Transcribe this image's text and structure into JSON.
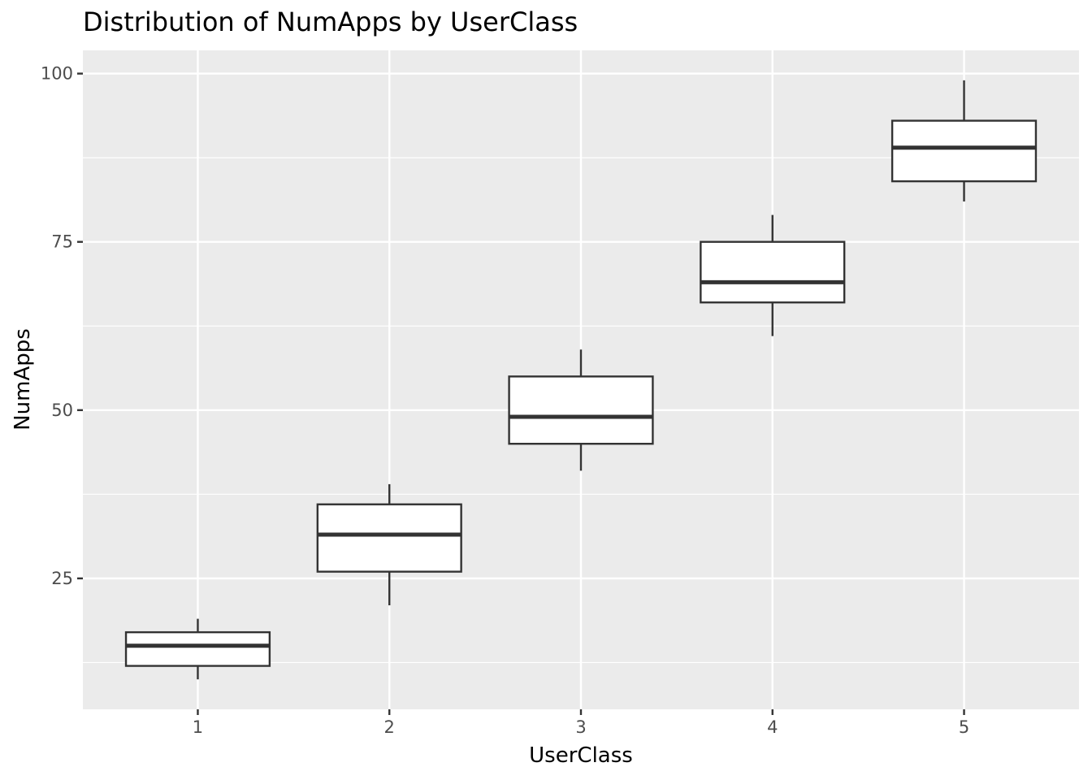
{
  "chart_data": {
    "type": "boxplot",
    "title": "Distribution of  NumApps  by  UserClass",
    "xlabel": "UserClass",
    "ylabel": "NumApps",
    "categories": [
      "1",
      "2",
      "3",
      "4",
      "5"
    ],
    "boxes": [
      {
        "category": "1",
        "whisker_low": 10,
        "q1": 12,
        "median": 15,
        "q3": 17,
        "whisker_high": 19
      },
      {
        "category": "2",
        "whisker_low": 21,
        "q1": 26,
        "median": 31.5,
        "q3": 36,
        "whisker_high": 39
      },
      {
        "category": "3",
        "whisker_low": 41,
        "q1": 45,
        "median": 49,
        "q3": 55,
        "whisker_high": 59
      },
      {
        "category": "4",
        "whisker_low": 61,
        "q1": 66,
        "median": 69,
        "q3": 75,
        "whisker_high": 79
      },
      {
        "category": "5",
        "whisker_low": 81,
        "q1": 84,
        "median": 89,
        "q3": 93,
        "whisker_high": 99
      }
    ],
    "y_ticks": [
      25,
      50,
      75,
      100
    ],
    "y_minor_ticks": [
      12.5,
      37.5,
      62.5,
      87.5
    ],
    "ylim": [
      5.55,
      103.45
    ],
    "grid": true,
    "colors": {
      "panel": "#ebebeb",
      "grid": "#ffffff",
      "box_fill": "#ffffff",
      "box_stroke": "#333333"
    }
  }
}
